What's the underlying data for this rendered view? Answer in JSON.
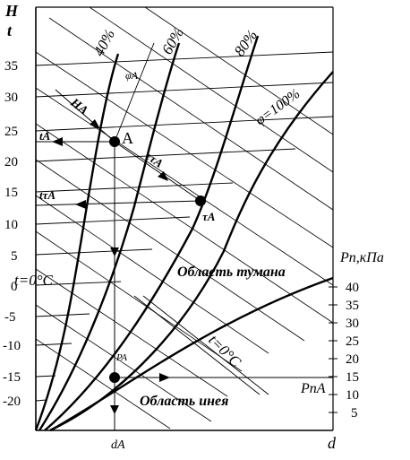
{
  "axes": {
    "y_label_H": "H",
    "y_label_t": "t",
    "x_label_d": "d",
    "x_label_dA": "dA",
    "right_label_Pp_kPa": "Pп,кПа",
    "y_ticks": [
      "35",
      "30",
      "25",
      "20",
      "15",
      "10",
      "5",
      "0",
      "-5",
      "-10",
      "-15",
      "-20"
    ],
    "right_ticks": [
      "40",
      "35",
      "30",
      "25",
      "20",
      "15",
      "10",
      "5"
    ]
  },
  "curves": {
    "phi_40": "40%",
    "phi_60": "60%",
    "phi_80": "80%",
    "phi_100": "φ=100%"
  },
  "regions": {
    "fog": "Область тумана",
    "frost": "Область инея"
  },
  "isotherm_left": "t=0°C",
  "isotherm_right": "t=0°C",
  "point_labels": {
    "A": "A",
    "HA": "HA",
    "tA": "tA",
    "phiA": "φA",
    "epsTA": "ετA",
    "tTA": "tτA",
    "TA": "τA",
    "PA": "PA",
    "PpA": "PпA"
  }
}
